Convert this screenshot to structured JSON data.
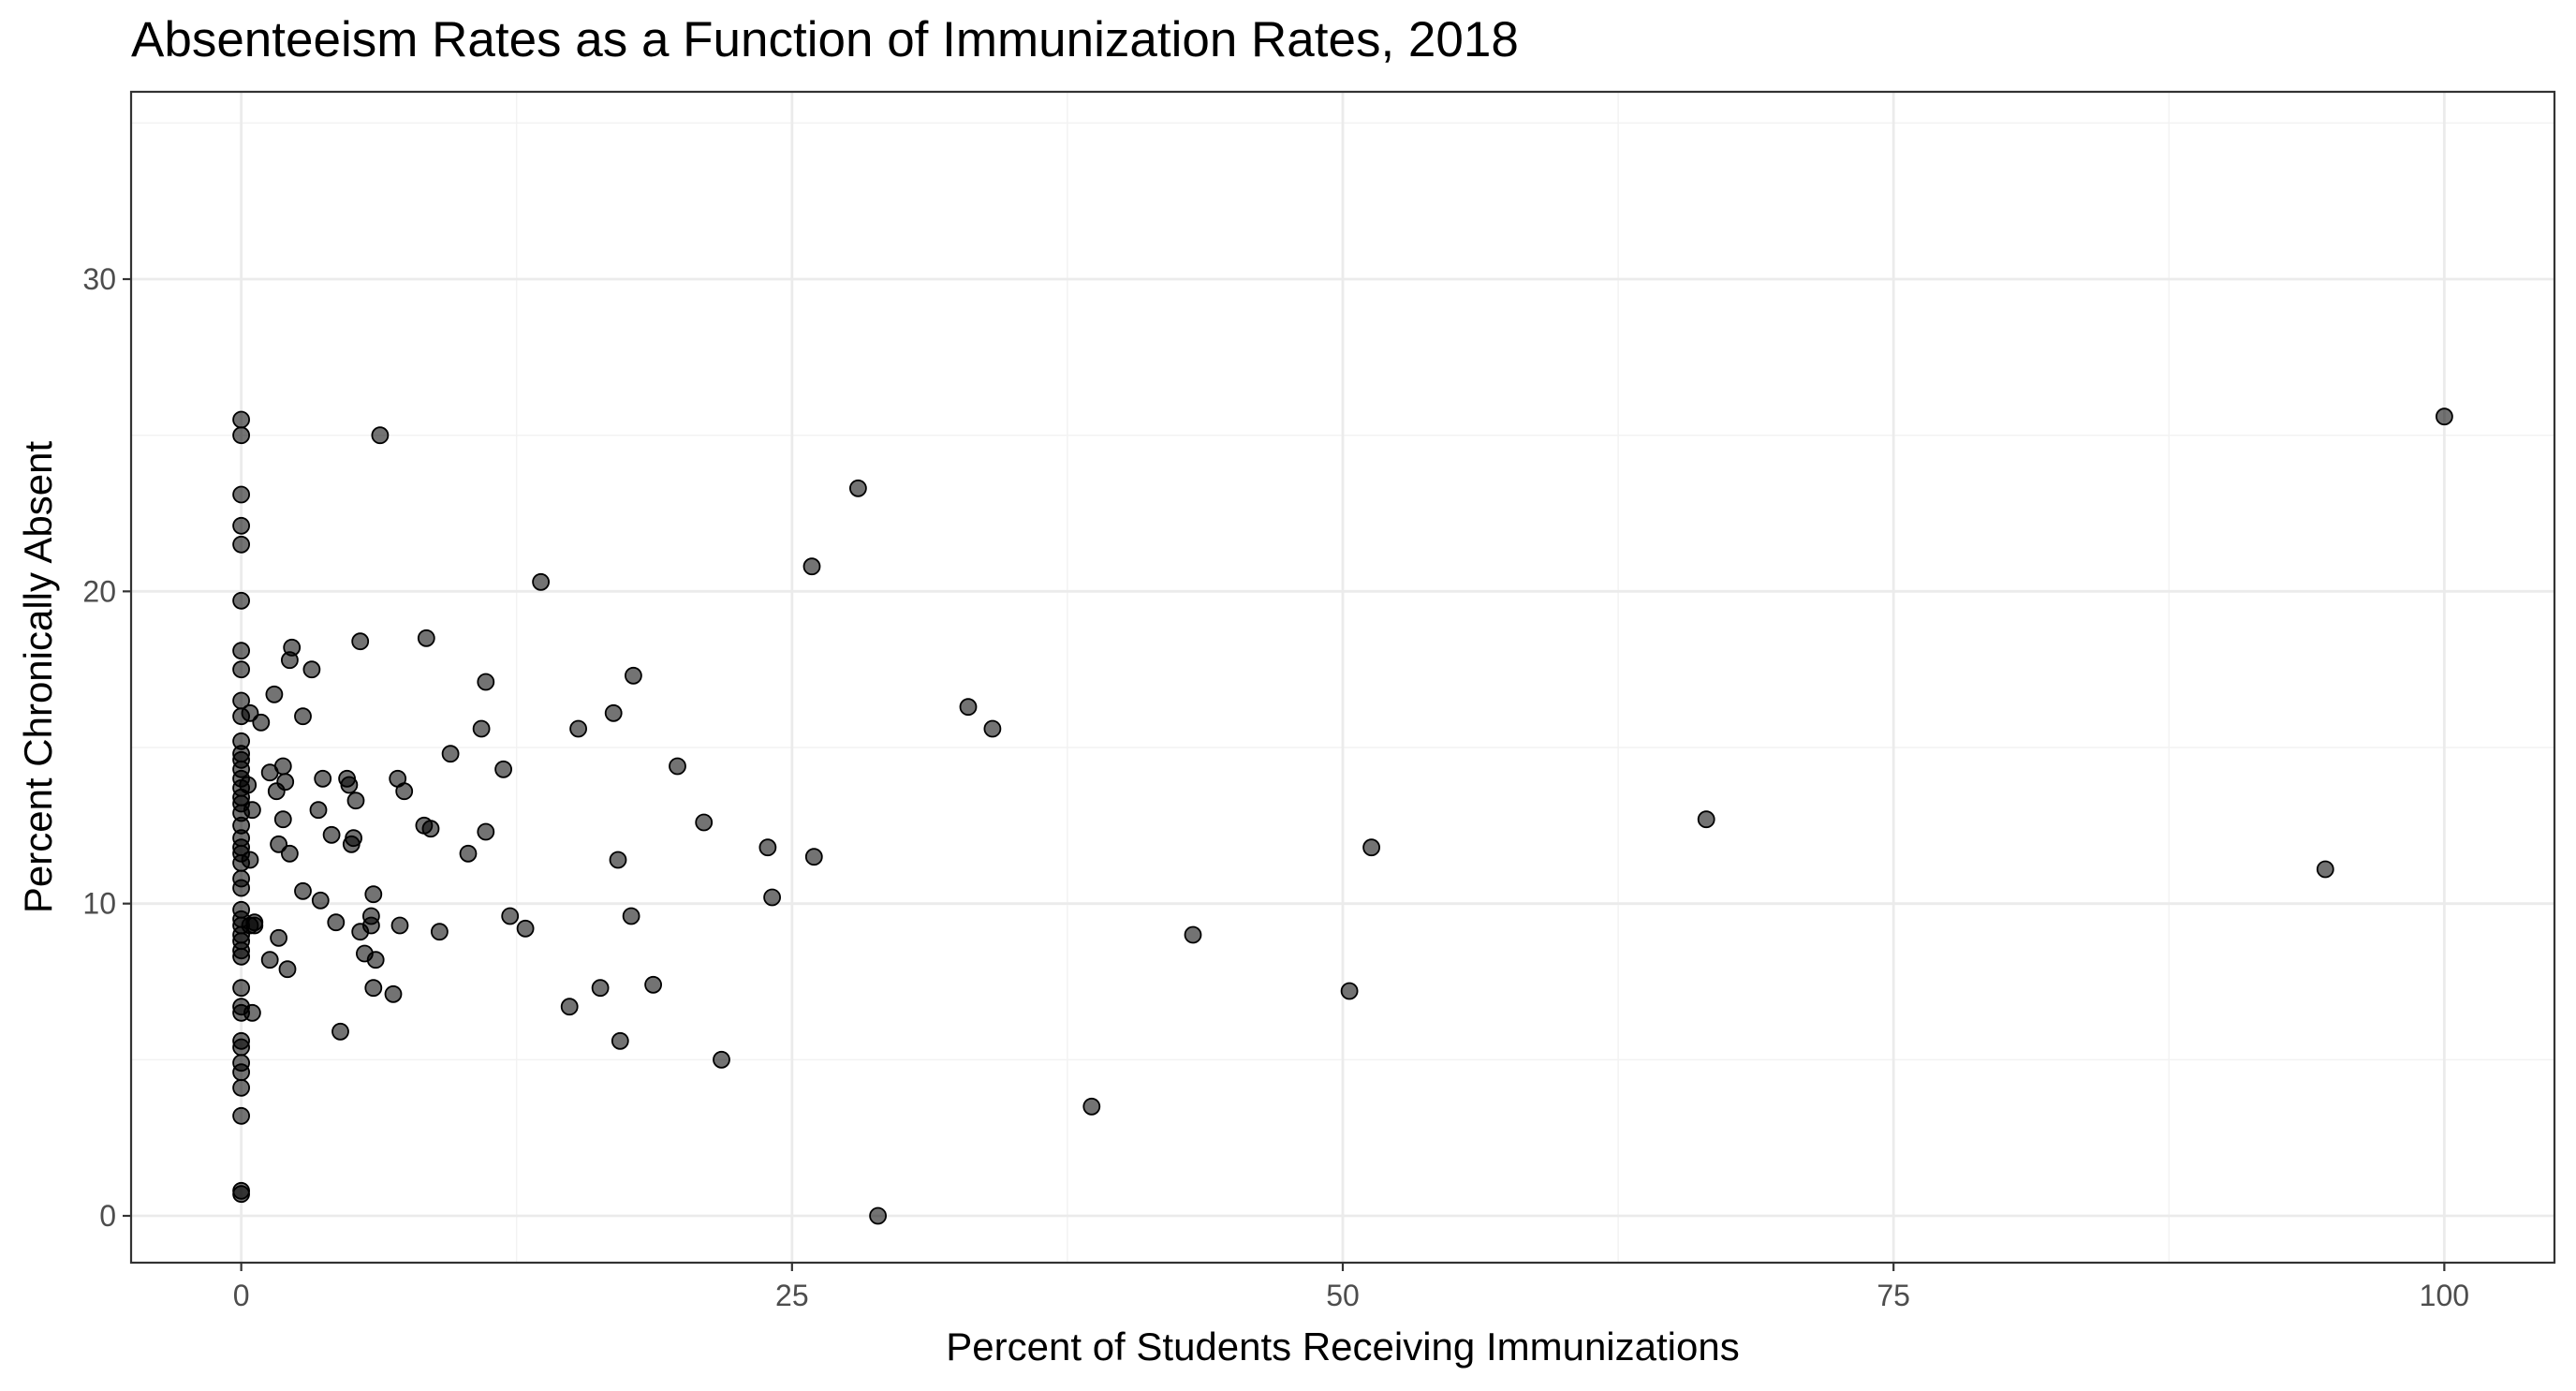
{
  "chart_data": {
    "type": "scatter",
    "title": "Absenteeism Rates as a Function of Immunization Rates, 2018",
    "xlabel": "Percent of Students Receiving Immunizations",
    "ylabel": "Percent Chronically Absent",
    "xlim": [
      -5,
      105
    ],
    "ylim": [
      -1.5,
      36
    ],
    "x_ticks": [
      0,
      25,
      50,
      75,
      100
    ],
    "y_ticks": [
      0,
      10,
      20,
      30
    ],
    "x_tick_labels": [
      "0",
      "25",
      "50",
      "75",
      "100"
    ],
    "y_tick_labels": [
      "0",
      "10",
      "20",
      "30"
    ],
    "grid": true,
    "legend": "none",
    "point_color": "#000000",
    "points": [
      [
        0,
        25.5
      ],
      [
        0,
        25.0
      ],
      [
        0,
        23.1
      ],
      [
        0,
        22.1
      ],
      [
        0,
        21.5
      ],
      [
        0,
        19.7
      ],
      [
        0,
        18.1
      ],
      [
        0,
        17.5
      ],
      [
        0,
        16.5
      ],
      [
        0,
        16.0
      ],
      [
        0,
        15.2
      ],
      [
        0,
        14.8
      ],
      [
        0,
        14.6
      ],
      [
        0,
        14.3
      ],
      [
        0,
        14.0
      ],
      [
        0,
        13.7
      ],
      [
        0,
        13.4
      ],
      [
        0,
        13.2
      ],
      [
        0,
        12.9
      ],
      [
        0,
        12.5
      ],
      [
        0,
        12.1
      ],
      [
        0,
        11.8
      ],
      [
        0,
        11.6
      ],
      [
        0,
        11.3
      ],
      [
        0,
        10.8
      ],
      [
        0,
        10.5
      ],
      [
        0,
        9.8
      ],
      [
        0,
        9.5
      ],
      [
        0,
        9.3
      ],
      [
        0,
        9.0
      ],
      [
        0,
        8.8
      ],
      [
        0,
        8.5
      ],
      [
        0,
        8.3
      ],
      [
        0,
        7.3
      ],
      [
        0,
        6.7
      ],
      [
        0,
        6.5
      ],
      [
        0,
        5.6
      ],
      [
        0,
        5.4
      ],
      [
        0,
        4.9
      ],
      [
        0,
        4.6
      ],
      [
        0,
        4.1
      ],
      [
        0,
        3.2
      ],
      [
        0,
        0.8
      ],
      [
        0,
        0.7
      ],
      [
        0.4,
        16.1
      ],
      [
        0.3,
        13.8
      ],
      [
        0.4,
        11.4
      ],
      [
        0.4,
        9.3
      ],
      [
        0.6,
        9.3
      ],
      [
        0.5,
        6.5
      ],
      [
        0.5,
        13.0
      ],
      [
        0.6,
        9.4
      ],
      [
        0.9,
        15.8
      ],
      [
        1.3,
        14.2
      ],
      [
        1.3,
        8.2
      ],
      [
        1.5,
        16.7
      ],
      [
        1.6,
        13.6
      ],
      [
        1.7,
        11.9
      ],
      [
        1.7,
        8.9
      ],
      [
        1.9,
        14.4
      ],
      [
        1.9,
        12.7
      ],
      [
        2.0,
        13.9
      ],
      [
        2.1,
        7.9
      ],
      [
        2.2,
        11.6
      ],
      [
        2.2,
        17.8
      ],
      [
        2.3,
        18.2
      ],
      [
        2.8,
        10.4
      ],
      [
        2.8,
        16.0
      ],
      [
        3.2,
        17.5
      ],
      [
        3.5,
        13.0
      ],
      [
        3.6,
        10.1
      ],
      [
        3.7,
        14.0
      ],
      [
        4.1,
        12.2
      ],
      [
        4.3,
        9.4
      ],
      [
        4.5,
        5.9
      ],
      [
        4.8,
        14.0
      ],
      [
        4.9,
        13.8
      ],
      [
        5.0,
        11.9
      ],
      [
        5.1,
        12.1
      ],
      [
        5.2,
        13.3
      ],
      [
        5.4,
        18.4
      ],
      [
        5.4,
        9.1
      ],
      [
        5.6,
        8.4
      ],
      [
        5.9,
        9.3
      ],
      [
        5.9,
        9.6
      ],
      [
        6.0,
        7.3
      ],
      [
        6.0,
        10.3
      ],
      [
        6.1,
        8.2
      ],
      [
        6.3,
        25.0
      ],
      [
        6.9,
        7.1
      ],
      [
        7.1,
        14.0
      ],
      [
        7.2,
        9.3
      ],
      [
        7.4,
        13.6
      ],
      [
        8.3,
        12.5
      ],
      [
        8.4,
        18.5
      ],
      [
        8.6,
        12.4
      ],
      [
        9.0,
        9.1
      ],
      [
        9.5,
        14.8
      ],
      [
        10.3,
        11.6
      ],
      [
        10.9,
        15.6
      ],
      [
        11.1,
        17.1
      ],
      [
        11.1,
        12.3
      ],
      [
        11.9,
        14.3
      ],
      [
        12.2,
        9.6
      ],
      [
        12.9,
        9.2
      ],
      [
        13.6,
        20.3
      ],
      [
        14.9,
        6.7
      ],
      [
        15.3,
        15.6
      ],
      [
        16.3,
        7.3
      ],
      [
        16.9,
        16.1
      ],
      [
        17.1,
        11.4
      ],
      [
        17.2,
        5.6
      ],
      [
        17.7,
        9.6
      ],
      [
        17.8,
        17.3
      ],
      [
        18.7,
        7.4
      ],
      [
        19.8,
        14.4
      ],
      [
        21.0,
        12.6
      ],
      [
        21.8,
        5.0
      ],
      [
        23.9,
        11.8
      ],
      [
        24.1,
        10.2
      ],
      [
        25.9,
        20.8
      ],
      [
        26.0,
        11.5
      ],
      [
        28.0,
        23.3
      ],
      [
        28.9,
        0.0
      ],
      [
        33.0,
        16.3
      ],
      [
        34.1,
        15.6
      ],
      [
        38.6,
        3.5
      ],
      [
        43.2,
        9.0
      ],
      [
        50.3,
        7.2
      ],
      [
        51.3,
        11.8
      ],
      [
        66.5,
        12.7
      ],
      [
        94.6,
        11.1
      ],
      [
        100.0,
        25.6
      ]
    ]
  }
}
